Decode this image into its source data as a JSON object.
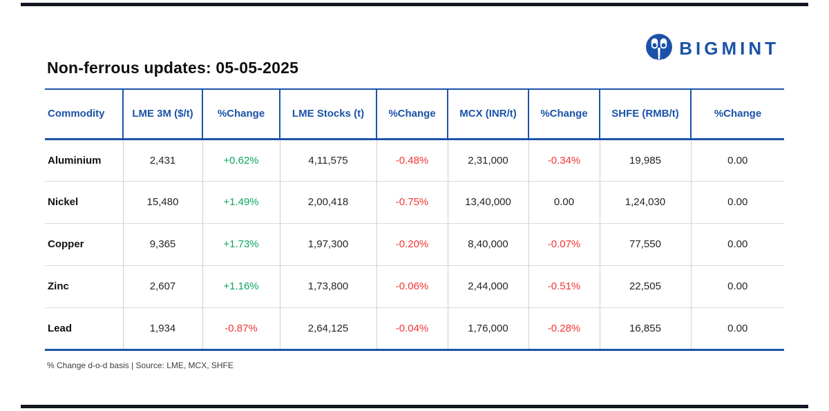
{
  "brand": {
    "name": "BIGMINT"
  },
  "title": "Non-ferrous updates: 05-05-2025",
  "table": {
    "columns": [
      "Commodity",
      "LME 3M ($/t)",
      "%Change",
      "LME Stocks (t)",
      "%Change",
      "MCX (INR/t)",
      "%Change",
      "SHFE (RMB/t)",
      "%Change"
    ],
    "rows": [
      {
        "commodity": "Aluminium",
        "lme_3m": "2,431",
        "lme_3m_change": "+0.62%",
        "lme_stocks": "4,11,575",
        "lme_stocks_change": "-0.48%",
        "mcx": "2,31,000",
        "mcx_change": "-0.34%",
        "shfe": "19,985",
        "shfe_change": "0.00"
      },
      {
        "commodity": "Nickel",
        "lme_3m": "15,480",
        "lme_3m_change": "+1.49%",
        "lme_stocks": "2,00,418",
        "lme_stocks_change": "-0.75%",
        "mcx": "13,40,000",
        "mcx_change": "0.00",
        "shfe": "1,24,030",
        "shfe_change": "0.00"
      },
      {
        "commodity": "Copper",
        "lme_3m": "9,365",
        "lme_3m_change": "+1.73%",
        "lme_stocks": "1,97,300",
        "lme_stocks_change": "-0.20%",
        "mcx": "8,40,000",
        "mcx_change": "-0.07%",
        "shfe": "77,550",
        "shfe_change": "0.00"
      },
      {
        "commodity": "Zinc",
        "lme_3m": "2,607",
        "lme_3m_change": "+1.16%",
        "lme_stocks": "1,73,800",
        "lme_stocks_change": "-0.06%",
        "mcx": "2,44,000",
        "mcx_change": "-0.51%",
        "shfe": "22,505",
        "shfe_change": "0.00"
      },
      {
        "commodity": "Lead",
        "lme_3m": "1,934",
        "lme_3m_change": "-0.87%",
        "lme_stocks": "2,64,125",
        "lme_stocks_change": "-0.04%",
        "mcx": "1,76,000",
        "mcx_change": "-0.28%",
        "shfe": "16,855",
        "shfe_change": "0.00"
      }
    ]
  },
  "footnote": "% Change d-o-d basis | Source: LME, MCX, SHFE",
  "colors": {
    "accent_blue": "#1b52a8",
    "positive_green": "#0aa660",
    "negative_red": "#f23434",
    "divider_bar_dark": "#131722"
  }
}
